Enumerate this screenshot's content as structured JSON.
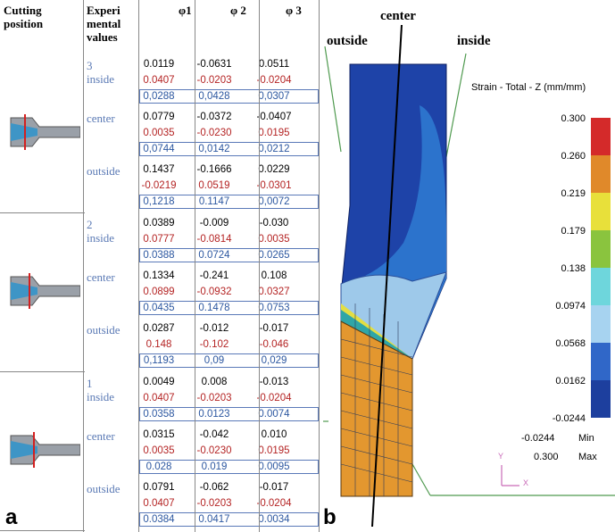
{
  "table": {
    "headers": {
      "cutting_position": "Cutting position",
      "experimental_values": "Experi mental values",
      "phi1": "φ1",
      "phi2": "φ 2",
      "phi3": "φ 3"
    },
    "groups": [
      {
        "id": "3",
        "rows": [
          {
            "label": "3\ninside",
            "black": [
              "0.0119",
              "-0.0631",
              "0.0511"
            ],
            "red": [
              "0.0407",
              "-0.0203",
              "-0.0204"
            ],
            "blue": [
              "0,0288",
              "0,0428",
              "0,0307"
            ]
          },
          {
            "label": "center",
            "black": [
              "0.0779",
              "-0.0372",
              "-0.0407"
            ],
            "red": [
              "0.0035",
              "-0.0230",
              "0.0195"
            ],
            "blue": [
              "0,0744",
              "0,0142",
              "0,0212"
            ]
          },
          {
            "label": "outside",
            "black": [
              "0.1437",
              "-0.1666",
              "0.0229"
            ],
            "red": [
              "-0.0219",
              "0.0519",
              "-0.0301"
            ],
            "blue": [
              "0,1218",
              "0.1147",
              "0,0072"
            ]
          }
        ]
      },
      {
        "id": "2",
        "rows": [
          {
            "label": "2\ninside",
            "black": [
              "0.0389",
              "-0.009",
              "-0.030"
            ],
            "red": [
              "0.0777",
              "-0.0814",
              "0.0035"
            ],
            "blue": [
              "0.0388",
              "0.0724",
              "0.0265"
            ]
          },
          {
            "label": "center",
            "black": [
              "0.1334",
              "-0.241",
              "0.108"
            ],
            "red": [
              "0.0899",
              "-0.0932",
              "0.0327"
            ],
            "blue": [
              "0.0435",
              "0.1478",
              "0.0753"
            ]
          },
          {
            "label": "outside",
            "black": [
              "0.0287",
              "-0.012",
              "-0.017"
            ],
            "red": [
              "0.148",
              "-0.102",
              "-0.046"
            ],
            "blue": [
              "0,1193",
              "0,09",
              "0,029"
            ]
          }
        ]
      },
      {
        "id": "1",
        "rows": [
          {
            "label": "1\ninside",
            "black": [
              "0.0049",
              "0.008",
              "-0.013"
            ],
            "red": [
              "0.0407",
              "-0.0203",
              "-0.0204"
            ],
            "blue": [
              "0.0358",
              "0.0123",
              "0.0074"
            ]
          },
          {
            "label": "center",
            "black": [
              "0.0315",
              "-0.042",
              "0.010"
            ],
            "red": [
              "0.0035",
              "-0.0230",
              "0.0195"
            ],
            "blue": [
              "0.028",
              "0.019",
              "0.0095"
            ]
          },
          {
            "label": "outside",
            "black": [
              "0.0791",
              "-0.062",
              "-0.017"
            ],
            "red": [
              "0.0407",
              "-0.0203",
              "-0.0204"
            ],
            "blue": [
              "0.0384",
              "0.0417",
              "0.0034"
            ]
          }
        ]
      }
    ],
    "panel_label": "a"
  },
  "figure": {
    "panel_label": "b",
    "center_label": "center",
    "outside_label": "outside",
    "inside_label": "inside",
    "legend_title": "Strain - Total - Z (mm/mm)",
    "legend_values": [
      "0.300",
      "0.260",
      "0.219",
      "0.179",
      "0.138",
      "0.0974",
      "0.0568",
      "0.0162",
      "-0.0244"
    ],
    "legend_colors": [
      "#d42a2a",
      "#e0892a",
      "#e8e03a",
      "#8ac43e",
      "#6ed6dc",
      "#a7d3f0",
      "#3067c8",
      "#1d3f9e",
      "#1a2c86"
    ],
    "min_value": "-0.0244",
    "min_label": "Min",
    "max_value": "0.300",
    "max_label": "Max",
    "axis_y": "Y",
    "axis_x": "X"
  }
}
